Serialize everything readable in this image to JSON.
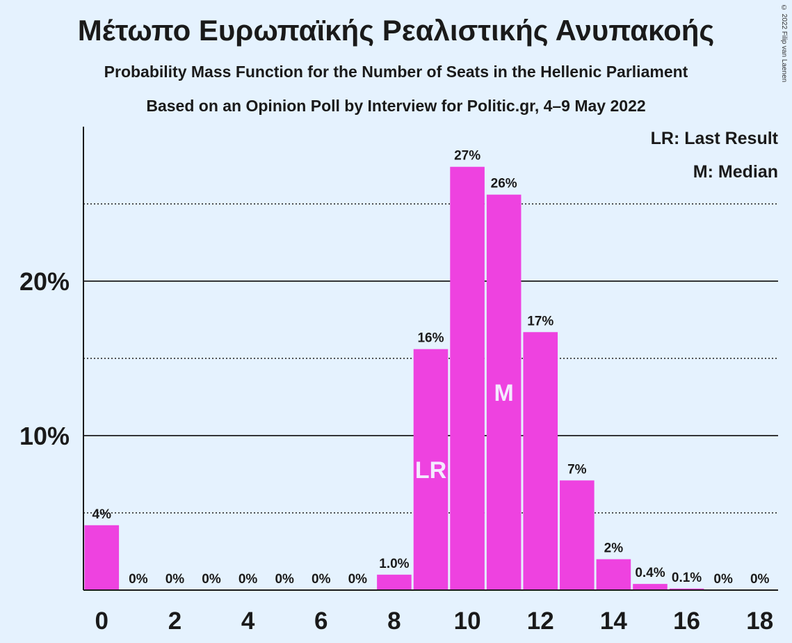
{
  "header": {
    "title": "Μέτωπο Ευρωπαϊκής Ρεαλιστικής Ανυπακοής",
    "subtitle": "Probability Mass Function for the Number of Seats in the Hellenic Parliament",
    "source": "Based on an Opinion Poll by Interview for Politic.gr, 4–9 May 2022",
    "copyright": "© 2022 Filip van Laenen"
  },
  "legend": {
    "last_result": "LR: Last Result",
    "median": "M: Median"
  },
  "colors": {
    "background": "#e5f2fe",
    "bar": "#ee42e0",
    "text": "#1a1a1a",
    "axis": "#1a1a1a",
    "marker_text": "#f4eaff"
  },
  "chart_data": {
    "type": "bar",
    "categories": [
      0,
      1,
      2,
      3,
      4,
      5,
      6,
      7,
      8,
      9,
      10,
      11,
      12,
      13,
      14,
      15,
      16,
      17,
      18
    ],
    "values": [
      4.2,
      0,
      0,
      0,
      0,
      0,
      0,
      0,
      1.0,
      15.6,
      27.4,
      25.6,
      16.7,
      7.1,
      2.0,
      0.4,
      0.1,
      0,
      0
    ],
    "data_labels": [
      "4%",
      "0%",
      "0%",
      "0%",
      "0%",
      "0%",
      "0%",
      "0%",
      "1.0%",
      "16%",
      "27%",
      "26%",
      "17%",
      "7%",
      "2%",
      "0.4%",
      "0.1%",
      "0%",
      "0%"
    ],
    "x_tick_labels": [
      "0",
      "2",
      "4",
      "6",
      "8",
      "10",
      "12",
      "14",
      "16",
      "18"
    ],
    "x_ticks": [
      0,
      2,
      4,
      6,
      8,
      10,
      12,
      14,
      16,
      18
    ],
    "y_tick_labels": [
      "10%",
      "20%"
    ],
    "y_ticks": [
      10,
      20
    ],
    "y_dotted_gridlines": [
      5,
      15,
      25
    ],
    "ylim": [
      0,
      30
    ],
    "xlim": [
      -0.5,
      18.5
    ],
    "bar_markers": [
      {
        "x": 9,
        "label": "LR"
      },
      {
        "x": 11,
        "label": "M"
      }
    ],
    "grid": true,
    "legend_position": "top-right"
  }
}
